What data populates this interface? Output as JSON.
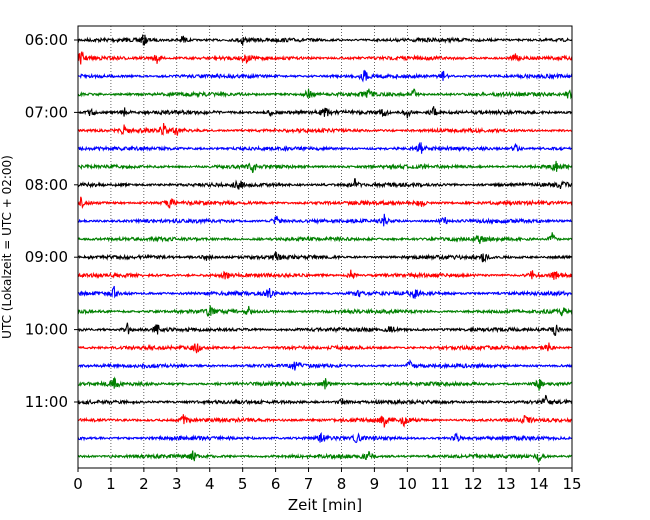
{
  "chart_data": {
    "type": "line",
    "subtype": "helicorder",
    "xlabel": "Zeit  [min]",
    "ylabel": "UTC (Lokalzeit = UTC + 02:00)",
    "xlim": [
      0,
      15
    ],
    "x_ticks": [
      0,
      1,
      2,
      3,
      4,
      5,
      6,
      7,
      8,
      9,
      10,
      11,
      12,
      13,
      14,
      15
    ],
    "y_ticks": [
      "06:00",
      "07:00",
      "08:00",
      "09:00",
      "10:00",
      "11:00"
    ],
    "trace_interval_min": 15,
    "grid": "vertical dotted lines at each minute",
    "trace_colors": [
      "#000000",
      "#ff0000",
      "#0000ff",
      "#008000"
    ],
    "traces": [
      {
        "start": "06:00",
        "events_min": [
          2.0,
          3.2,
          5.0
        ]
      },
      {
        "start": "06:15",
        "events_min": [
          0.1,
          2.4,
          5.1,
          13.3
        ]
      },
      {
        "start": "06:30",
        "events_min": [
          8.7,
          11.1
        ]
      },
      {
        "start": "06:45",
        "events_min": [
          7.0,
          8.8,
          10.2,
          14.9
        ]
      },
      {
        "start": "07:00",
        "events_min": [
          0.4,
          1.4,
          5.8,
          7.5,
          9.3,
          10.0,
          10.8
        ]
      },
      {
        "start": "07:15",
        "events_min": [
          1.4,
          2.6,
          3.0
        ]
      },
      {
        "start": "07:30",
        "events_min": [
          10.4,
          13.3
        ]
      },
      {
        "start": "07:45",
        "events_min": [
          5.3,
          14.5
        ]
      },
      {
        "start": "08:00",
        "events_min": [
          4.9,
          8.4,
          14.7
        ]
      },
      {
        "start": "08:15",
        "events_min": [
          0.1,
          2.8,
          10.4
        ]
      },
      {
        "start": "08:30",
        "events_min": [
          6.0,
          9.3,
          11.1
        ]
      },
      {
        "start": "08:45",
        "events_min": [
          12.2,
          14.4
        ]
      },
      {
        "start": "09:00",
        "events_min": [
          3.9,
          6.0,
          12.3
        ]
      },
      {
        "start": "09:15",
        "events_min": [
          4.5,
          8.3,
          13.8,
          14.5
        ]
      },
      {
        "start": "09:30",
        "events_min": [
          1.1,
          5.8,
          8.5,
          10.2
        ]
      },
      {
        "start": "09:45",
        "events_min": [
          4.0,
          5.2,
          14.7
        ]
      },
      {
        "start": "10:00",
        "events_min": [
          1.5,
          2.4,
          9.5,
          14.5
        ]
      },
      {
        "start": "10:15",
        "events_min": [
          3.6,
          14.3
        ]
      },
      {
        "start": "10:30",
        "events_min": [
          6.6,
          10.1
        ]
      },
      {
        "start": "10:45",
        "events_min": [
          1.1,
          7.5,
          14.0
        ]
      },
      {
        "start": "11:00",
        "events_min": [
          8.0,
          14.2
        ]
      },
      {
        "start": "11:15",
        "events_min": [
          3.2,
          9.3,
          9.9,
          13.6
        ]
      },
      {
        "start": "11:30",
        "events_min": [
          7.4,
          8.5,
          11.5
        ]
      },
      {
        "start": "11:45",
        "events_min": [
          3.5,
          8.8,
          14.0
        ]
      }
    ]
  }
}
